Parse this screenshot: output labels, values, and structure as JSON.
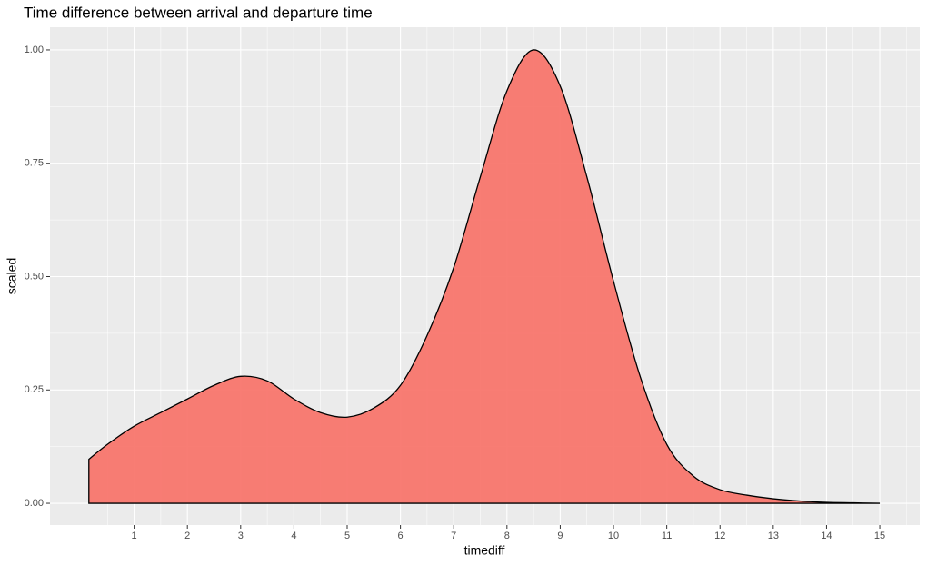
{
  "chart_data": {
    "type": "area",
    "title": "Time difference between arrival and departure time",
    "x_label": "timediff",
    "y_label": "scaled",
    "x": [
      0.15,
      0.5,
      1,
      1.5,
      2,
      2.5,
      3,
      3.5,
      4,
      4.5,
      5,
      5.5,
      6,
      6.5,
      7,
      7.5,
      8,
      8.5,
      9,
      9.5,
      10,
      10.5,
      11,
      11.5,
      12,
      12.5,
      13,
      13.5,
      14,
      14.5,
      15
    ],
    "values": [
      0.097,
      0.13,
      0.17,
      0.2,
      0.23,
      0.26,
      0.28,
      0.27,
      0.23,
      0.2,
      0.19,
      0.21,
      0.26,
      0.37,
      0.52,
      0.72,
      0.91,
      1.0,
      0.92,
      0.72,
      0.49,
      0.28,
      0.13,
      0.06,
      0.03,
      0.018,
      0.01,
      0.005,
      0.002,
      0.001,
      0.0
    ],
    "color": "#F8766D",
    "xlim": [
      -0.58,
      15.75
    ],
    "ylim": [
      -0.048,
      1.05
    ],
    "xticks": [
      1,
      2,
      3,
      4,
      5,
      6,
      7,
      8,
      9,
      10,
      11,
      12,
      13,
      14,
      15
    ],
    "yticks": [
      {
        "value": 0,
        "label": "0.00"
      },
      {
        "value": 0.25,
        "label": "0.25"
      },
      {
        "value": 0.5,
        "label": "0.50"
      },
      {
        "value": 0.75,
        "label": "0.75"
      },
      {
        "value": 1,
        "label": "1.00"
      }
    ],
    "grid": true
  }
}
